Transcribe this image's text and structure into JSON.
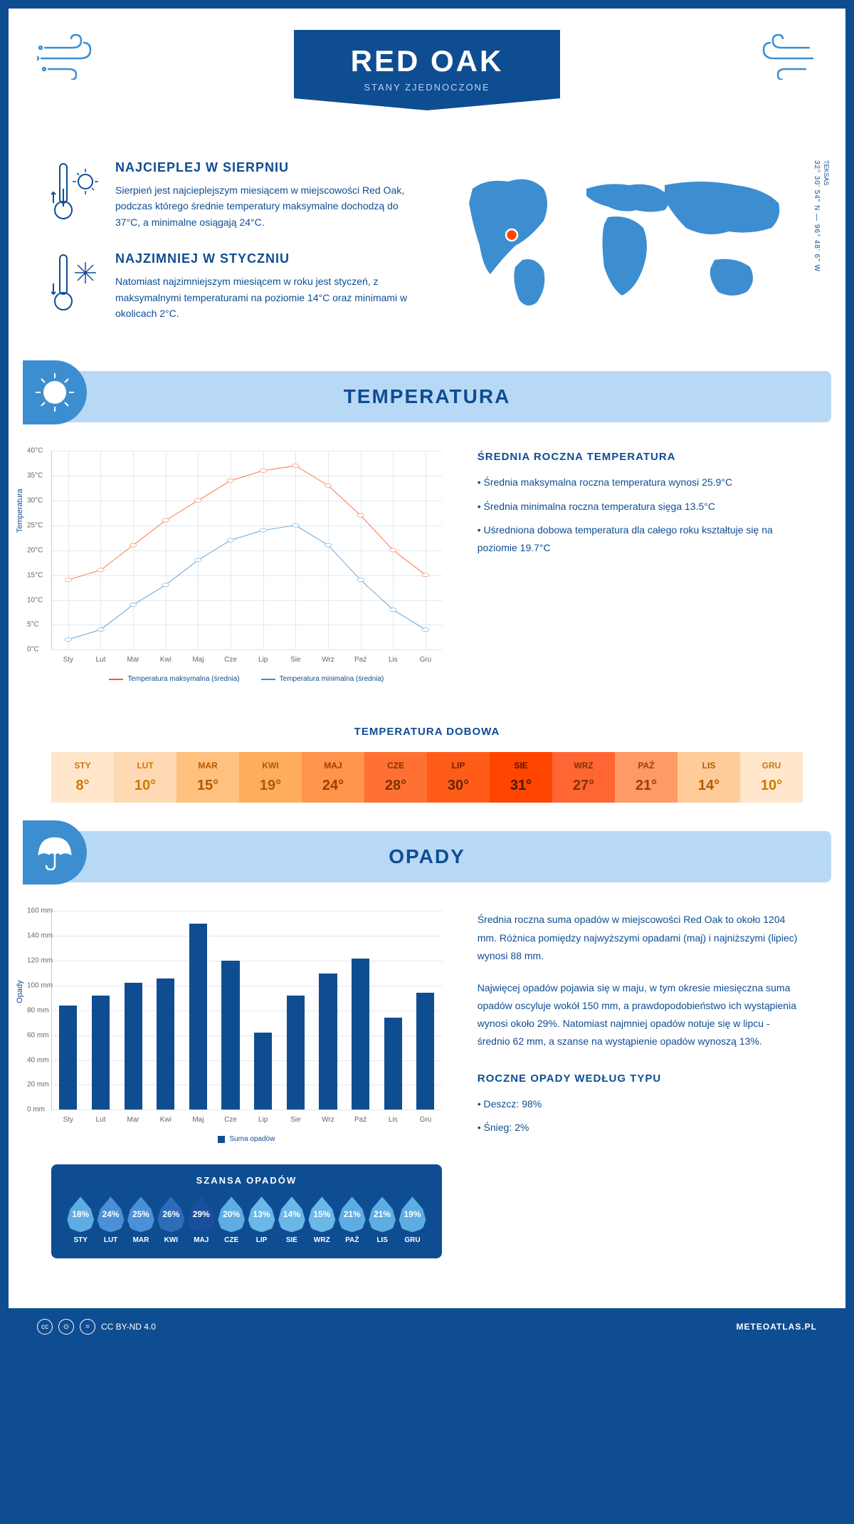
{
  "header": {
    "title": "RED OAK",
    "subtitle": "STANY ZJEDNOCZONE"
  },
  "location": {
    "region": "TEKSAS",
    "coords": "32° 30' 54\" N — 96° 48' 6\" W"
  },
  "warmest": {
    "title": "NAJCIEPLEJ W SIERPNIU",
    "text": "Sierpień jest najcieplejszym miesiącem w miejscowości Red Oak, podczas którego średnie temperatury maksymalne dochodzą do 37°C, a minimalne osiągają 24°C."
  },
  "coldest": {
    "title": "NAJZIMNIEJ W STYCZNIU",
    "text": "Natomiast najzimniejszym miesiącem w roku jest styczeń, z maksymalnymi temperaturami na poziomie 14°C oraz minimami w okolicach 2°C."
  },
  "temperature_section": {
    "heading": "TEMPERATURA",
    "annual_title": "ŚREDNIA ROCZNA TEMPERATURA",
    "bullets": [
      "• Średnia maksymalna roczna temperatura wynosi 25.9°C",
      "• Średnia minimalna roczna temperatura sięga 13.5°C",
      "• Uśredniona dobowa temperatura dla całego roku kształtuje się na poziomie 19.7°C"
    ],
    "y_label": "Temperatura",
    "legend_max": "Temperatura maksymalna (średnia)",
    "legend_min": "Temperatura minimalna (średnia)",
    "chart": {
      "months": [
        "Sty",
        "Lut",
        "Mar",
        "Kwi",
        "Maj",
        "Cze",
        "Lip",
        "Sie",
        "Wrz",
        "Paź",
        "Lis",
        "Gru"
      ],
      "max_series": [
        14,
        16,
        21,
        26,
        30,
        34,
        36,
        37,
        33,
        27,
        20,
        15
      ],
      "min_series": [
        2,
        4,
        9,
        13,
        18,
        22,
        24,
        25,
        21,
        14,
        8,
        4
      ],
      "ylim": [
        0,
        40
      ],
      "ytick_step": 5,
      "max_color": "#ff5722",
      "min_color": "#3d8ed0",
      "grid_color": "#e0e8f0",
      "line_width": 2,
      "marker_radius": 3
    },
    "daily_title": "TEMPERATURA DOBOWA",
    "daily": {
      "months": [
        "STY",
        "LUT",
        "MAR",
        "KWI",
        "MAJ",
        "CZE",
        "LIP",
        "SIE",
        "WRZ",
        "PAŹ",
        "LIS",
        "GRU"
      ],
      "values": [
        "8°",
        "10°",
        "15°",
        "19°",
        "24°",
        "28°",
        "30°",
        "31°",
        "27°",
        "21°",
        "14°",
        "10°"
      ],
      "bg_colors": [
        "#ffe6cc",
        "#ffd9b3",
        "#ffc180",
        "#ffad5c",
        "#ff944d",
        "#ff7033",
        "#ff5c1a",
        "#ff4500",
        "#ff6633",
        "#ff9966",
        "#ffcc99",
        "#ffe6cc"
      ],
      "text_colors": [
        "#cc7a00",
        "#cc7a00",
        "#b35900",
        "#b35900",
        "#994000",
        "#803300",
        "#662600",
        "#4d1a00",
        "#803300",
        "#994000",
        "#b35900",
        "#cc7a00"
      ]
    }
  },
  "precip_section": {
    "heading": "OPADY",
    "y_label": "Opady",
    "legend_label": "Suma opadów",
    "text1": "Średnia roczna suma opadów w miejscowości Red Oak to około 1204 mm. Różnica pomiędzy najwyższymi opadami (maj) i najniższymi (lipiec) wynosi 88 mm.",
    "text2": "Najwięcej opadów pojawia się w maju, w tym okresie miesięczna suma opadów oscyluje wokół 150 mm, a prawdopodobieństwo ich wystąpienia wynosi około 29%. Natomiast najmniej opadów notuje się w lipcu - średnio 62 mm, a szanse na wystąpienie opadów wynoszą 13%.",
    "type_title": "ROCZNE OPADY WEDŁUG TYPU",
    "type_rain": "• Deszcz: 98%",
    "type_snow": "• Śnieg: 2%",
    "chart": {
      "months": [
        "Sty",
        "Lut",
        "Mar",
        "Kwi",
        "Maj",
        "Cze",
        "Lip",
        "Sie",
        "Wrz",
        "Paź",
        "Lis",
        "Gru"
      ],
      "values": [
        84,
        92,
        102,
        106,
        150,
        120,
        62,
        92,
        110,
        122,
        74,
        94
      ],
      "ylim": [
        0,
        160
      ],
      "ytick_step": 20,
      "bar_color": "#0f4d92",
      "bar_width": 0.55
    },
    "chance_title": "SZANSA OPADÓW",
    "chance": {
      "months": [
        "STY",
        "LUT",
        "MAR",
        "KWI",
        "MAJ",
        "CZE",
        "LIP",
        "SIE",
        "WRZ",
        "PAŹ",
        "LIS",
        "GRU"
      ],
      "values": [
        "18%",
        "24%",
        "25%",
        "26%",
        "29%",
        "20%",
        "13%",
        "14%",
        "15%",
        "21%",
        "21%",
        "19%"
      ],
      "colors": [
        "#5dade2",
        "#4a90d9",
        "#4a90d9",
        "#2e6bb8",
        "#1a4f9c",
        "#5dade2",
        "#6ab8e8",
        "#6ab8e8",
        "#6ab8e8",
        "#5dade2",
        "#5dade2",
        "#5dade2"
      ]
    }
  },
  "footer": {
    "license": "CC BY-ND 4.0",
    "site": "METEOATLAS.PL"
  }
}
